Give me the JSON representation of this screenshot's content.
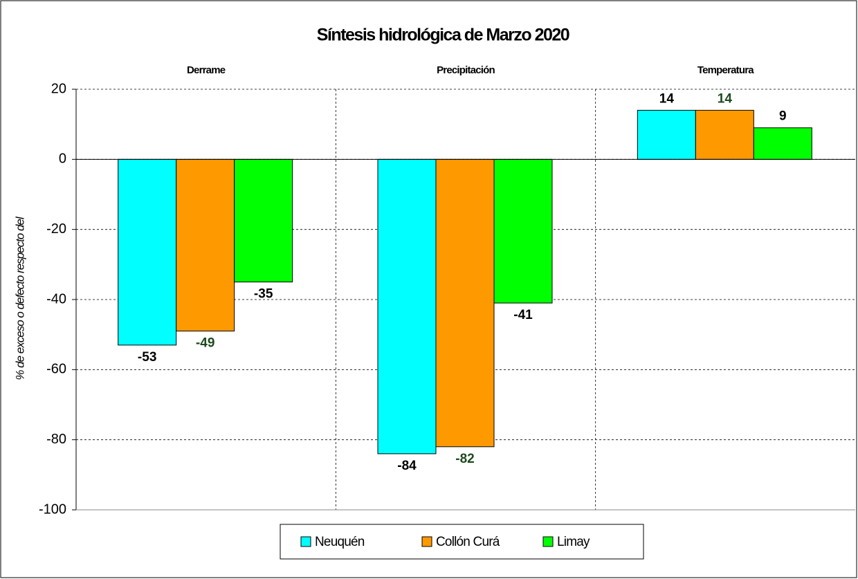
{
  "chart_data": {
    "type": "bar",
    "title": "Síntesis hidrológica de Marzo 2020",
    "y_label": "% de exceso o defecto respecto del",
    "categories": [
      "Derrame",
      "Precipitación",
      "Temperatura"
    ],
    "series": [
      {
        "name": "Neuquén",
        "color": "#00ffff",
        "label_color": "#000000",
        "values": [
          -53,
          -84,
          14
        ]
      },
      {
        "name": "Collón Curá",
        "color": "#ff9900",
        "label_color": "#1e4a1e",
        "values": [
          -49,
          -82,
          14
        ]
      },
      {
        "name": "Limay",
        "color": "#00ff00",
        "label_color": "#000000",
        "values": [
          -35,
          -41,
          9
        ]
      }
    ],
    "ylim": [
      -100,
      20
    ],
    "yticks": [
      -100,
      -80,
      -60,
      -40,
      -20,
      0,
      20
    ],
    "grid": true,
    "legend": "bottom"
  }
}
